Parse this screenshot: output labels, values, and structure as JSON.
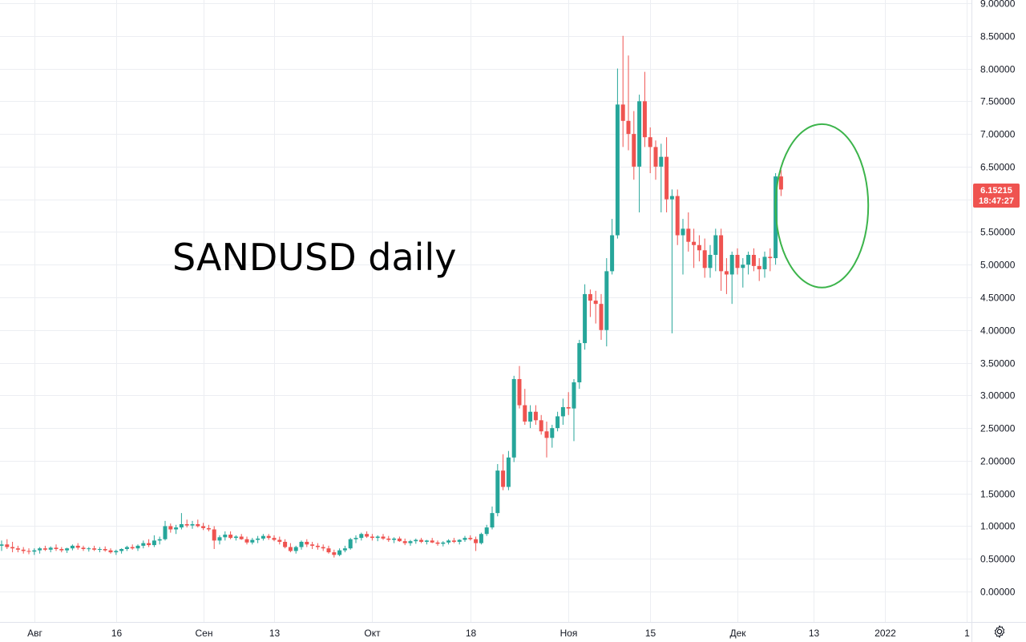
{
  "colors": {
    "up": "#26a69a",
    "down": "#ef5350",
    "grid": "#eceef2",
    "text": "#131722",
    "highlight": "#3cb44b",
    "price_badge": "#ef5350"
  },
  "icons": {
    "settings": "gear-icon"
  },
  "chart_data": {
    "type": "candlestick",
    "title": "",
    "annotation": "SANDUSD daily",
    "price_badge": {
      "price": "6.15215",
      "countdown": "18:47:27"
    },
    "y_axis": {
      "range": [
        -0.2,
        9.1
      ],
      "tick_labels": [
        "9.00000",
        "8.50000",
        "8.00000",
        "7.50000",
        "7.00000",
        "6.50000",
        "6.00000",
        "5.50000",
        "5.00000",
        "4.50000",
        "4.00000",
        "3.50000",
        "3.00000",
        "2.50000",
        "2.00000",
        "1.50000",
        "1.00000",
        "0.50000",
        "0.00000"
      ],
      "tick_values": [
        9,
        8.5,
        8,
        7.5,
        7,
        6.5,
        6,
        5.5,
        5,
        4.5,
        4,
        3.5,
        3,
        2.5,
        2,
        1.5,
        1,
        0.5,
        0
      ]
    },
    "x_axis": {
      "start_date": "2021-07-26",
      "tick_labels": [
        "Авг",
        "16",
        "Сен",
        "13",
        "Окт",
        "18",
        "Ноя",
        "15",
        "Дек",
        "13",
        "2022",
        "1"
      ],
      "tick_days": [
        6,
        21,
        37,
        50,
        68,
        86,
        104,
        119,
        135,
        149,
        162,
        177
      ]
    },
    "highlight": {
      "shape": "ellipse",
      "day_center": 150.5,
      "price_center": 5.9,
      "day_radius": 8.5,
      "price_radius": 1.25
    },
    "candles": [
      [
        0.7,
        0.78,
        0.62,
        0.72
      ],
      [
        0.72,
        0.8,
        0.65,
        0.68
      ],
      [
        0.68,
        0.76,
        0.6,
        0.66
      ],
      [
        0.66,
        0.7,
        0.6,
        0.64
      ],
      [
        0.64,
        0.68,
        0.58,
        0.62
      ],
      [
        0.62,
        0.66,
        0.57,
        0.61
      ],
      [
        0.61,
        0.66,
        0.56,
        0.63
      ],
      [
        0.63,
        0.68,
        0.58,
        0.66
      ],
      [
        0.66,
        0.7,
        0.62,
        0.64
      ],
      [
        0.64,
        0.69,
        0.6,
        0.67
      ],
      [
        0.67,
        0.72,
        0.62,
        0.65
      ],
      [
        0.65,
        0.68,
        0.6,
        0.63
      ],
      [
        0.63,
        0.67,
        0.59,
        0.66
      ],
      [
        0.66,
        0.72,
        0.63,
        0.7
      ],
      [
        0.7,
        0.74,
        0.64,
        0.67
      ],
      [
        0.67,
        0.7,
        0.62,
        0.65
      ],
      [
        0.65,
        0.68,
        0.61,
        0.66
      ],
      [
        0.66,
        0.7,
        0.62,
        0.64
      ],
      [
        0.64,
        0.68,
        0.6,
        0.65
      ],
      [
        0.65,
        0.69,
        0.61,
        0.63
      ],
      [
        0.63,
        0.66,
        0.58,
        0.6
      ],
      [
        0.6,
        0.64,
        0.56,
        0.62
      ],
      [
        0.62,
        0.66,
        0.58,
        0.65
      ],
      [
        0.65,
        0.7,
        0.62,
        0.68
      ],
      [
        0.68,
        0.72,
        0.64,
        0.66
      ],
      [
        0.66,
        0.72,
        0.62,
        0.7
      ],
      [
        0.7,
        0.78,
        0.66,
        0.74
      ],
      [
        0.74,
        0.8,
        0.68,
        0.71
      ],
      [
        0.71,
        0.86,
        0.68,
        0.78
      ],
      [
        0.78,
        0.84,
        0.72,
        0.8
      ],
      [
        0.8,
        1.08,
        0.78,
        1.0
      ],
      [
        1.0,
        1.04,
        0.9,
        0.95
      ],
      [
        0.95,
        1.02,
        0.88,
        0.98
      ],
      [
        0.98,
        1.2,
        0.95,
        1.03
      ],
      [
        1.03,
        1.1,
        0.98,
        1.01
      ],
      [
        1.01,
        1.08,
        0.96,
        1.03
      ],
      [
        1.03,
        1.1,
        0.98,
        1.0
      ],
      [
        1.0,
        1.05,
        0.94,
        0.97
      ],
      [
        0.97,
        1.02,
        0.92,
        0.95
      ],
      [
        0.95,
        1.0,
        0.65,
        0.78
      ],
      [
        0.78,
        0.86,
        0.72,
        0.83
      ],
      [
        0.83,
        0.92,
        0.78,
        0.87
      ],
      [
        0.87,
        0.92,
        0.8,
        0.82
      ],
      [
        0.82,
        0.86,
        0.78,
        0.84
      ],
      [
        0.84,
        0.88,
        0.79,
        0.8
      ],
      [
        0.8,
        0.84,
        0.72,
        0.75
      ],
      [
        0.75,
        0.82,
        0.72,
        0.79
      ],
      [
        0.79,
        0.85,
        0.74,
        0.81
      ],
      [
        0.81,
        0.88,
        0.78,
        0.85
      ],
      [
        0.85,
        0.88,
        0.79,
        0.82
      ],
      [
        0.82,
        0.86,
        0.77,
        0.79
      ],
      [
        0.79,
        0.84,
        0.72,
        0.76
      ],
      [
        0.76,
        0.8,
        0.66,
        0.68
      ],
      [
        0.68,
        0.74,
        0.6,
        0.62
      ],
      [
        0.62,
        0.7,
        0.58,
        0.68
      ],
      [
        0.68,
        0.78,
        0.64,
        0.76
      ],
      [
        0.76,
        0.8,
        0.68,
        0.72
      ],
      [
        0.72,
        0.76,
        0.65,
        0.7
      ],
      [
        0.7,
        0.74,
        0.64,
        0.68
      ],
      [
        0.68,
        0.72,
        0.62,
        0.66
      ],
      [
        0.66,
        0.7,
        0.58,
        0.6
      ],
      [
        0.6,
        0.64,
        0.52,
        0.56
      ],
      [
        0.56,
        0.66,
        0.54,
        0.63
      ],
      [
        0.63,
        0.7,
        0.6,
        0.66
      ],
      [
        0.66,
        0.82,
        0.64,
        0.8
      ],
      [
        0.8,
        0.86,
        0.74,
        0.82
      ],
      [
        0.82,
        0.9,
        0.78,
        0.88
      ],
      [
        0.88,
        0.92,
        0.82,
        0.84
      ],
      [
        0.84,
        0.88,
        0.78,
        0.82
      ],
      [
        0.82,
        0.86,
        0.77,
        0.84
      ],
      [
        0.84,
        0.88,
        0.79,
        0.81
      ],
      [
        0.81,
        0.85,
        0.76,
        0.79
      ],
      [
        0.79,
        0.83,
        0.74,
        0.81
      ],
      [
        0.81,
        0.84,
        0.76,
        0.77
      ],
      [
        0.77,
        0.81,
        0.71,
        0.74
      ],
      [
        0.74,
        0.79,
        0.7,
        0.77
      ],
      [
        0.77,
        0.81,
        0.73,
        0.79
      ],
      [
        0.79,
        0.82,
        0.74,
        0.76
      ],
      [
        0.76,
        0.79,
        0.72,
        0.78
      ],
      [
        0.78,
        0.82,
        0.74,
        0.75
      ],
      [
        0.75,
        0.78,
        0.7,
        0.73
      ],
      [
        0.73,
        0.77,
        0.69,
        0.75
      ],
      [
        0.75,
        0.8,
        0.72,
        0.78
      ],
      [
        0.78,
        0.82,
        0.74,
        0.76
      ],
      [
        0.76,
        0.8,
        0.72,
        0.79
      ],
      [
        0.79,
        0.85,
        0.76,
        0.82
      ],
      [
        0.82,
        0.86,
        0.78,
        0.8
      ],
      [
        0.8,
        0.84,
        0.62,
        0.74
      ],
      [
        0.74,
        0.9,
        0.72,
        0.88
      ],
      [
        0.88,
        1.02,
        0.85,
        0.98
      ],
      [
        0.98,
        1.3,
        0.95,
        1.2
      ],
      [
        1.2,
        1.95,
        1.15,
        1.85
      ],
      [
        1.85,
        2.1,
        1.55,
        1.6
      ],
      [
        1.6,
        2.15,
        1.55,
        2.05
      ],
      [
        2.05,
        3.3,
        1.98,
        3.25
      ],
      [
        3.25,
        3.45,
        2.8,
        2.85
      ],
      [
        2.85,
        3.1,
        2.55,
        2.6
      ],
      [
        2.6,
        2.85,
        2.5,
        2.75
      ],
      [
        2.75,
        2.85,
        2.55,
        2.62
      ],
      [
        2.62,
        2.7,
        2.4,
        2.45
      ],
      [
        2.45,
        2.6,
        2.05,
        2.35
      ],
      [
        2.35,
        2.55,
        2.2,
        2.5
      ],
      [
        2.5,
        2.75,
        2.45,
        2.68
      ],
      [
        2.68,
        2.95,
        2.55,
        2.82
      ],
      [
        2.82,
        3.05,
        2.7,
        2.8
      ],
      [
        2.8,
        3.25,
        2.3,
        3.2
      ],
      [
        3.2,
        3.85,
        3.1,
        3.8
      ],
      [
        3.8,
        4.7,
        3.7,
        4.55
      ],
      [
        4.55,
        4.62,
        4.2,
        4.45
      ],
      [
        4.45,
        4.6,
        4.1,
        4.4
      ],
      [
        4.4,
        4.55,
        3.85,
        4.0
      ],
      [
        4.0,
        5.1,
        3.75,
        4.9
      ],
      [
        4.9,
        5.7,
        4.85,
        5.45
      ],
      [
        5.45,
        8.0,
        5.4,
        7.45
      ],
      [
        7.45,
        8.5,
        6.8,
        7.2
      ],
      [
        7.2,
        8.2,
        6.75,
        7.0
      ],
      [
        7.0,
        7.35,
        6.3,
        6.5
      ],
      [
        6.5,
        7.6,
        5.8,
        7.5
      ],
      [
        7.5,
        7.95,
        6.8,
        6.95
      ],
      [
        6.95,
        7.1,
        6.4,
        6.8
      ],
      [
        6.8,
        6.9,
        6.3,
        6.5
      ],
      [
        6.5,
        6.85,
        5.8,
        6.65
      ],
      [
        6.65,
        6.95,
        5.8,
        6.0
      ],
      [
        6.0,
        6.15,
        3.95,
        6.05
      ],
      [
        6.05,
        6.15,
        5.3,
        5.45
      ],
      [
        5.45,
        5.7,
        4.85,
        5.55
      ],
      [
        5.55,
        5.8,
        5.2,
        5.35
      ],
      [
        5.35,
        5.55,
        4.95,
        5.3
      ],
      [
        5.3,
        5.45,
        5.05,
        5.22
      ],
      [
        5.22,
        5.4,
        4.8,
        4.95
      ],
      [
        4.95,
        5.3,
        4.8,
        5.15
      ],
      [
        5.15,
        5.55,
        4.9,
        5.45
      ],
      [
        5.45,
        5.55,
        4.6,
        4.9
      ],
      [
        4.9,
        5.1,
        4.55,
        4.85
      ],
      [
        4.85,
        5.2,
        4.4,
        5.15
      ],
      [
        5.15,
        5.25,
        4.85,
        4.95
      ],
      [
        4.95,
        5.1,
        4.65,
        5.0
      ],
      [
        5.0,
        5.2,
        4.85,
        5.15
      ],
      [
        5.15,
        5.25,
        4.9,
        4.98
      ],
      [
        4.98,
        5.1,
        4.75,
        4.93
      ],
      [
        4.93,
        5.2,
        4.8,
        5.12
      ],
      [
        5.12,
        5.25,
        4.9,
        5.1
      ],
      [
        5.1,
        6.4,
        5.0,
        6.35
      ],
      [
        6.35,
        6.45,
        6.05,
        6.15
      ]
    ]
  }
}
